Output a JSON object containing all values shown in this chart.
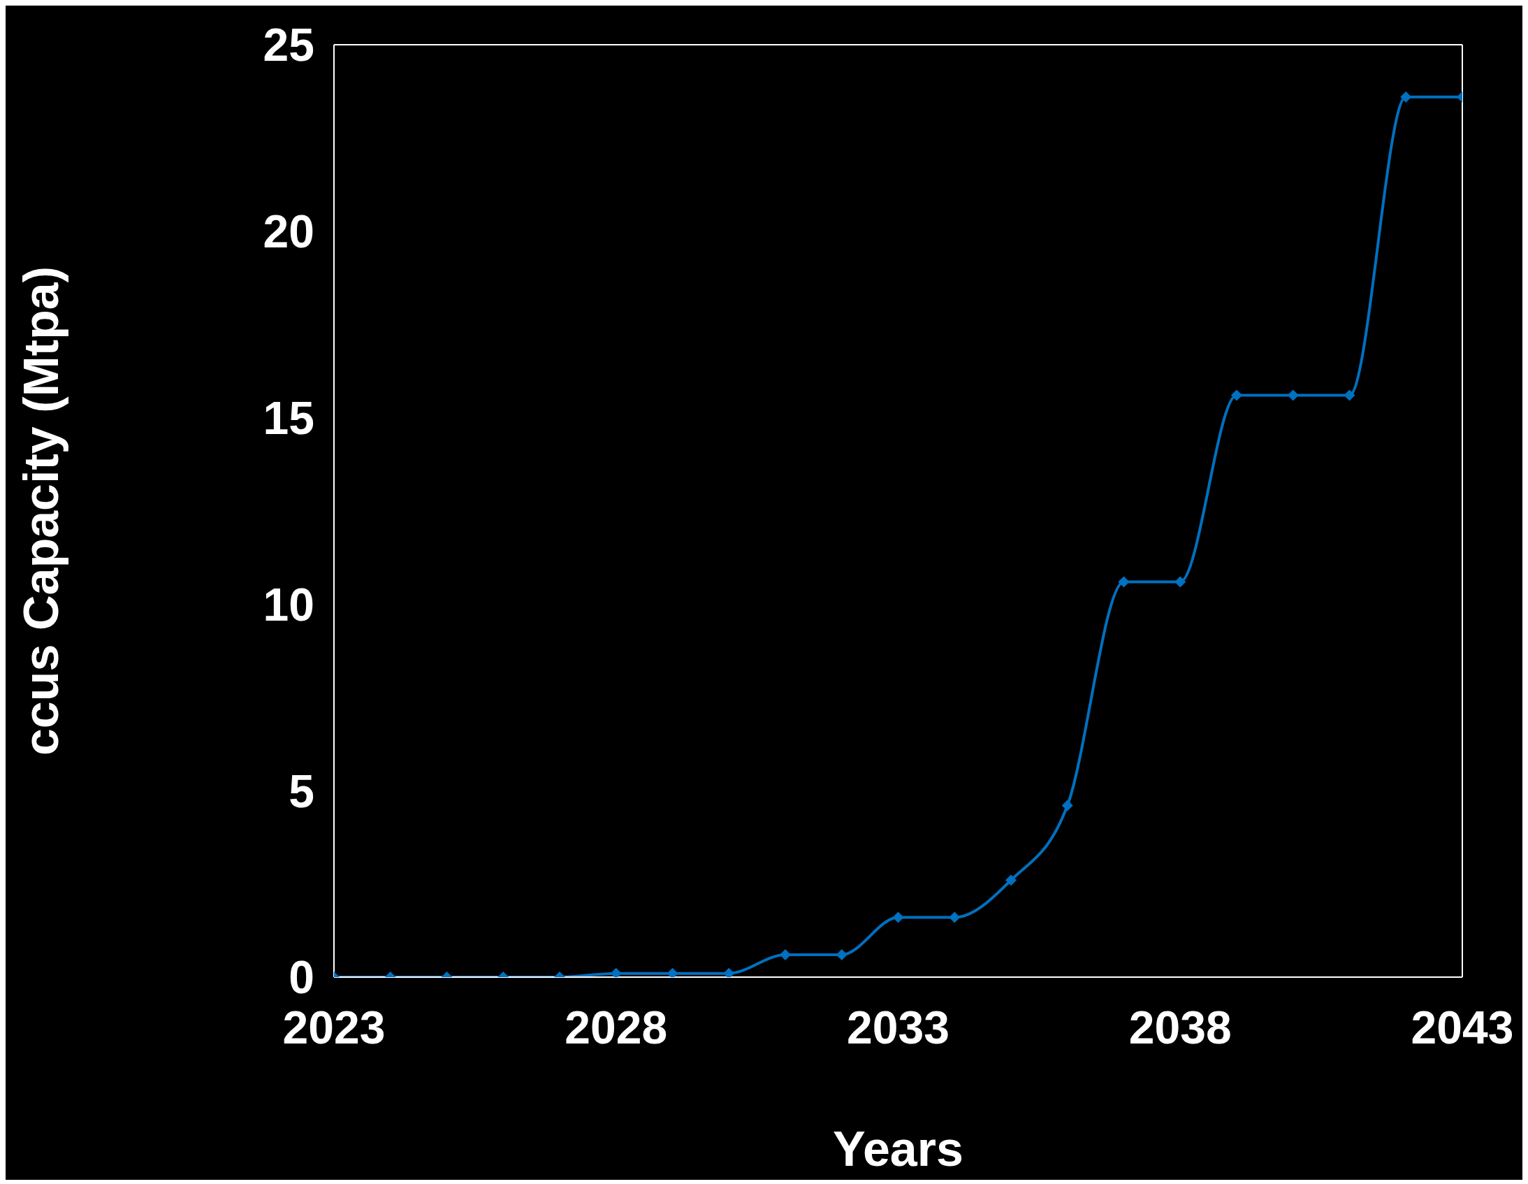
{
  "chart_data": {
    "type": "line",
    "xlabel": "Years",
    "ylabel": "ccus Capacity (Mtpa)",
    "x": [
      2023,
      2024,
      2025,
      2026,
      2027,
      2028,
      2029,
      2030,
      2031,
      2032,
      2033,
      2034,
      2035,
      2036,
      2037,
      2038,
      2039,
      2040,
      2041,
      2042,
      2043
    ],
    "series": [
      {
        "color": "#0070c0",
        "values": [
          0,
          0,
          0,
          0,
          0,
          0.1,
          0.1,
          0.1,
          0.6,
          0.6,
          1.6,
          1.6,
          2.6,
          4.6,
          10.6,
          10.6,
          15.6,
          15.6,
          15.6,
          23.6,
          23.6
        ]
      }
    ],
    "xlim": [
      2023,
      2043
    ],
    "xticks": [
      2023,
      2028,
      2033,
      2038,
      2043
    ],
    "ylim": [
      0,
      25
    ],
    "yticks": [
      0,
      5,
      10,
      15,
      20,
      25
    ],
    "marker": "diamond",
    "line_style": "solid"
  }
}
